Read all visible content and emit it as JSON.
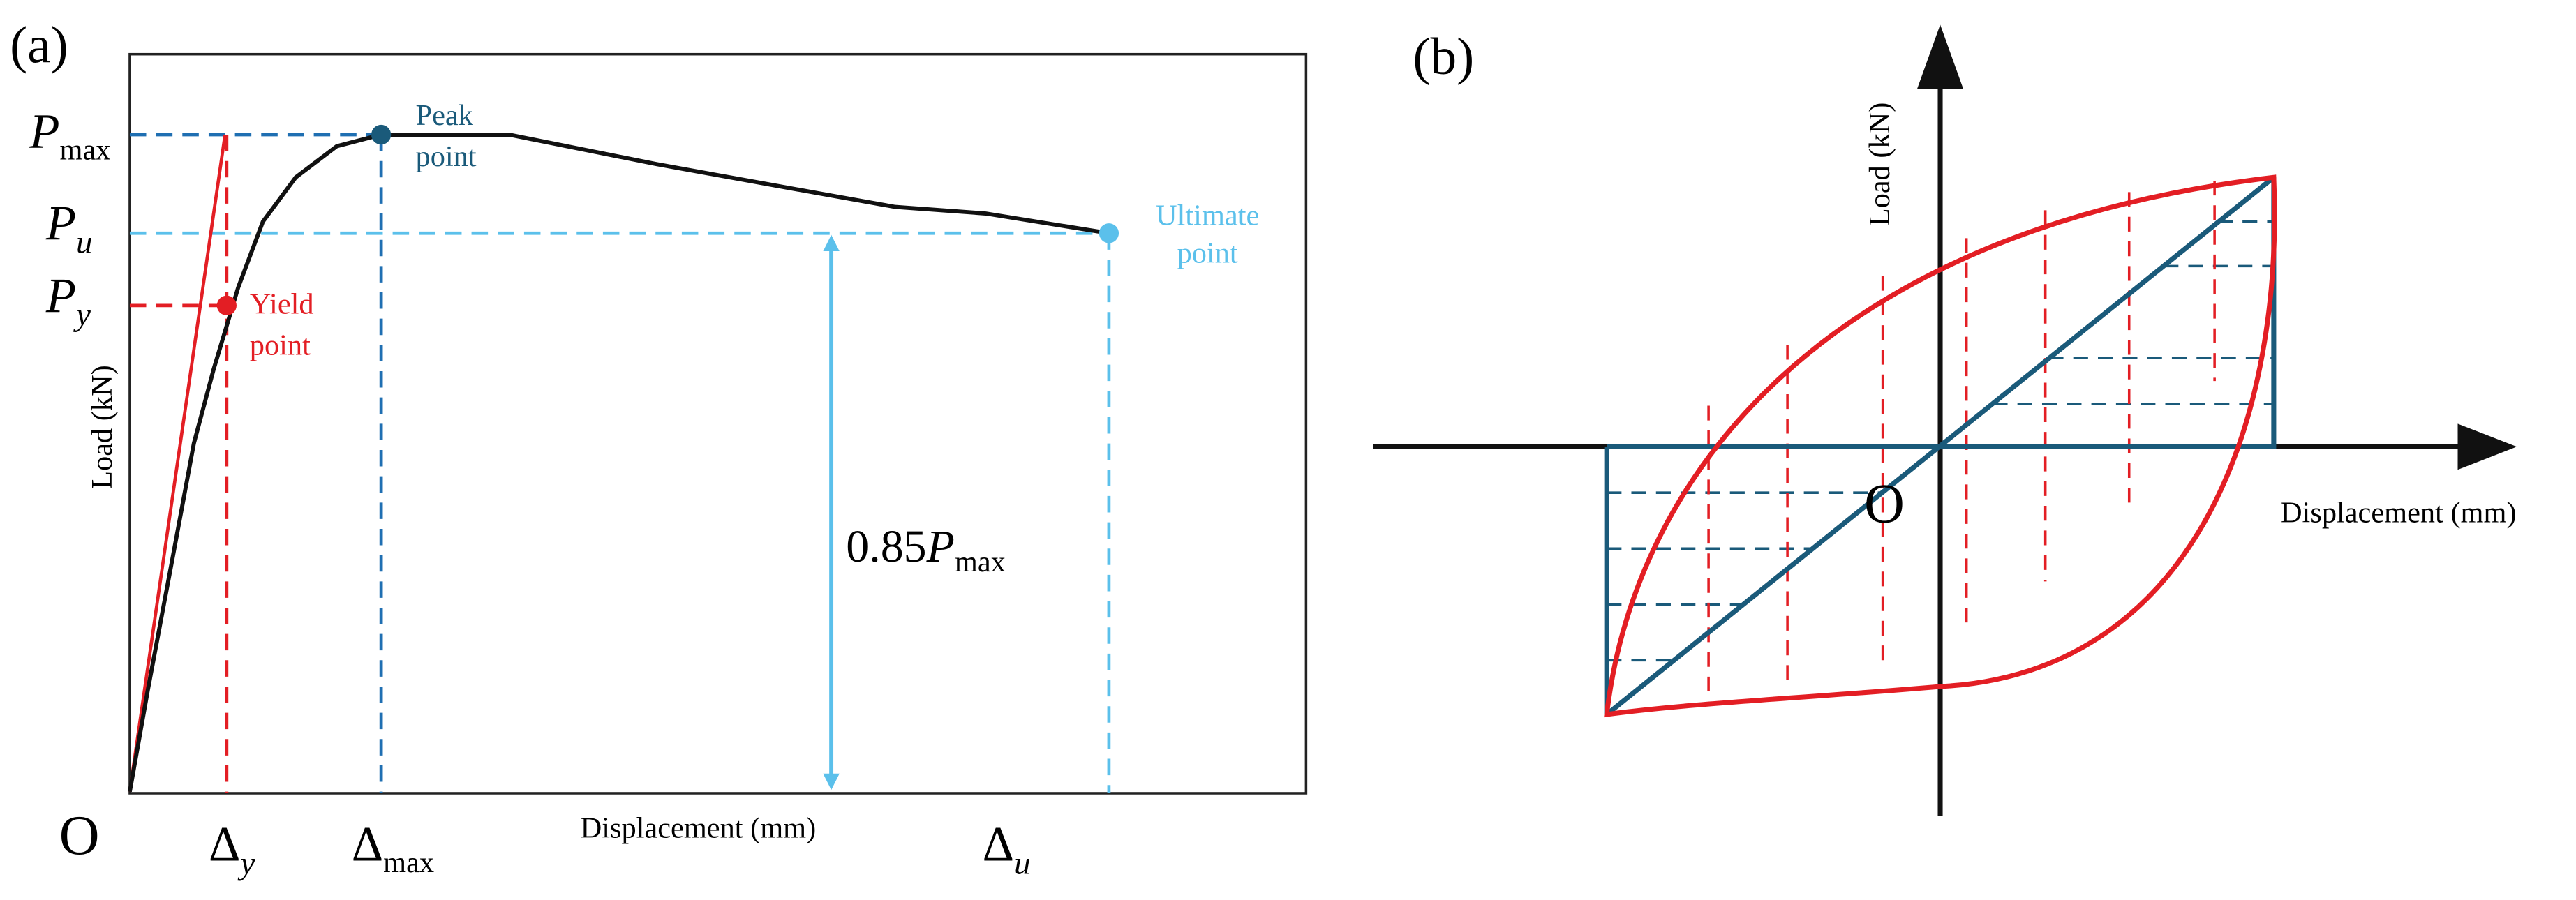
{
  "panel_a": {
    "label": "(a)",
    "y_axis_label": "Load (kN)",
    "x_axis_label": "Displacement (mm)",
    "origin": "O",
    "y_markers": [
      {
        "symbol": "P",
        "subscript": "max"
      },
      {
        "symbol": "P",
        "subscript": "u"
      },
      {
        "symbol": "P",
        "subscript": "y"
      }
    ],
    "x_markers": [
      {
        "symbol": "Δ",
        "subscript": "y"
      },
      {
        "symbol": "Δ",
        "subscript": "max"
      },
      {
        "symbol": "Δ",
        "subscript": "u"
      }
    ],
    "points": [
      {
        "lines": [
          "Peak",
          "point"
        ]
      },
      {
        "lines": [
          "Yield",
          "point"
        ]
      },
      {
        "lines": [
          "Ultimate",
          "point"
        ]
      }
    ],
    "height_annotation": {
      "prefix": "0.85",
      "symbol": "P",
      "subscript": "max"
    }
  },
  "panel_b": {
    "label": "(b)",
    "y_axis_label": "Load (kN)",
    "x_axis_label": "Displacement (mm)",
    "origin": "O"
  }
}
